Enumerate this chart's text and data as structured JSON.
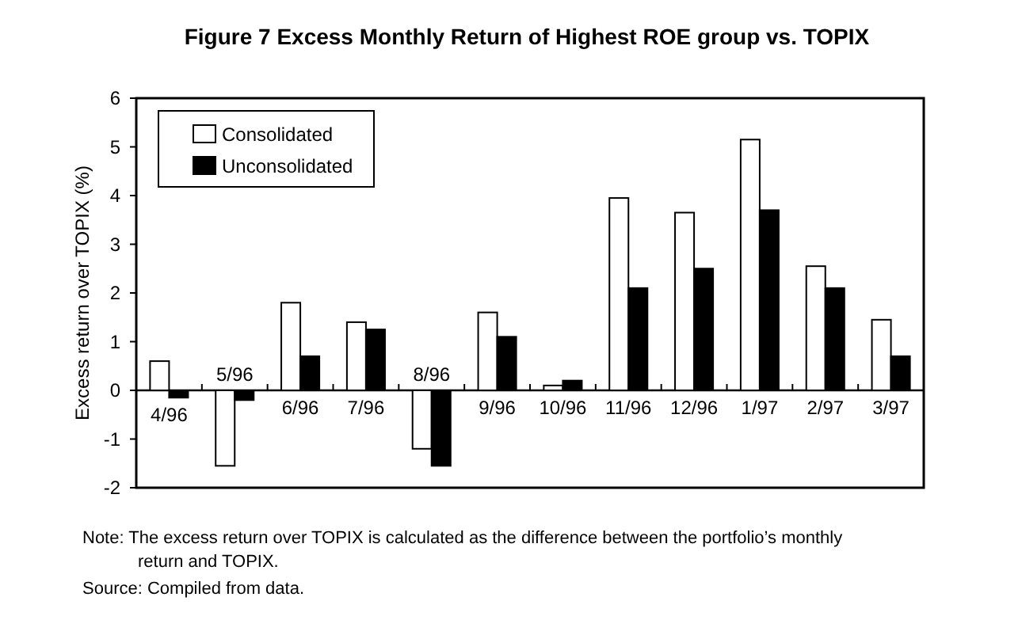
{
  "chart_data": {
    "type": "bar",
    "title": "Figure 7   Excess Monthly Return of Highest ROE group vs. TOPIX",
    "ylabel": "Excess return over TOPIX (%)",
    "categories": [
      "4/96",
      "5/96",
      "6/96",
      "7/96",
      "8/96",
      "9/96",
      "10/96",
      "11/96",
      "12/96",
      "1/97",
      "2/97",
      "3/97"
    ],
    "series": [
      {
        "name": "Consolidated",
        "color": "#ffffff",
        "values": [
          0.6,
          -1.55,
          1.8,
          1.4,
          -1.2,
          1.6,
          0.1,
          3.95,
          3.65,
          5.15,
          2.55,
          1.45
        ]
      },
      {
        "name": "Unconsolidated",
        "color": "#000000",
        "values": [
          -0.15,
          -0.2,
          0.7,
          1.25,
          -1.55,
          1.1,
          0.2,
          2.1,
          2.5,
          3.7,
          2.1,
          0.7
        ]
      }
    ],
    "ylim": [
      -2,
      6
    ],
    "yticks": [
      -2,
      -1,
      0,
      1,
      2,
      3,
      4,
      5,
      6
    ],
    "grid": false,
    "legend": "top left",
    "annotations": [
      "Note: The excess return over TOPIX is calculated as the difference between the portfolio’s monthly return and TOPIX.",
      "Source: Compiled from data."
    ]
  }
}
